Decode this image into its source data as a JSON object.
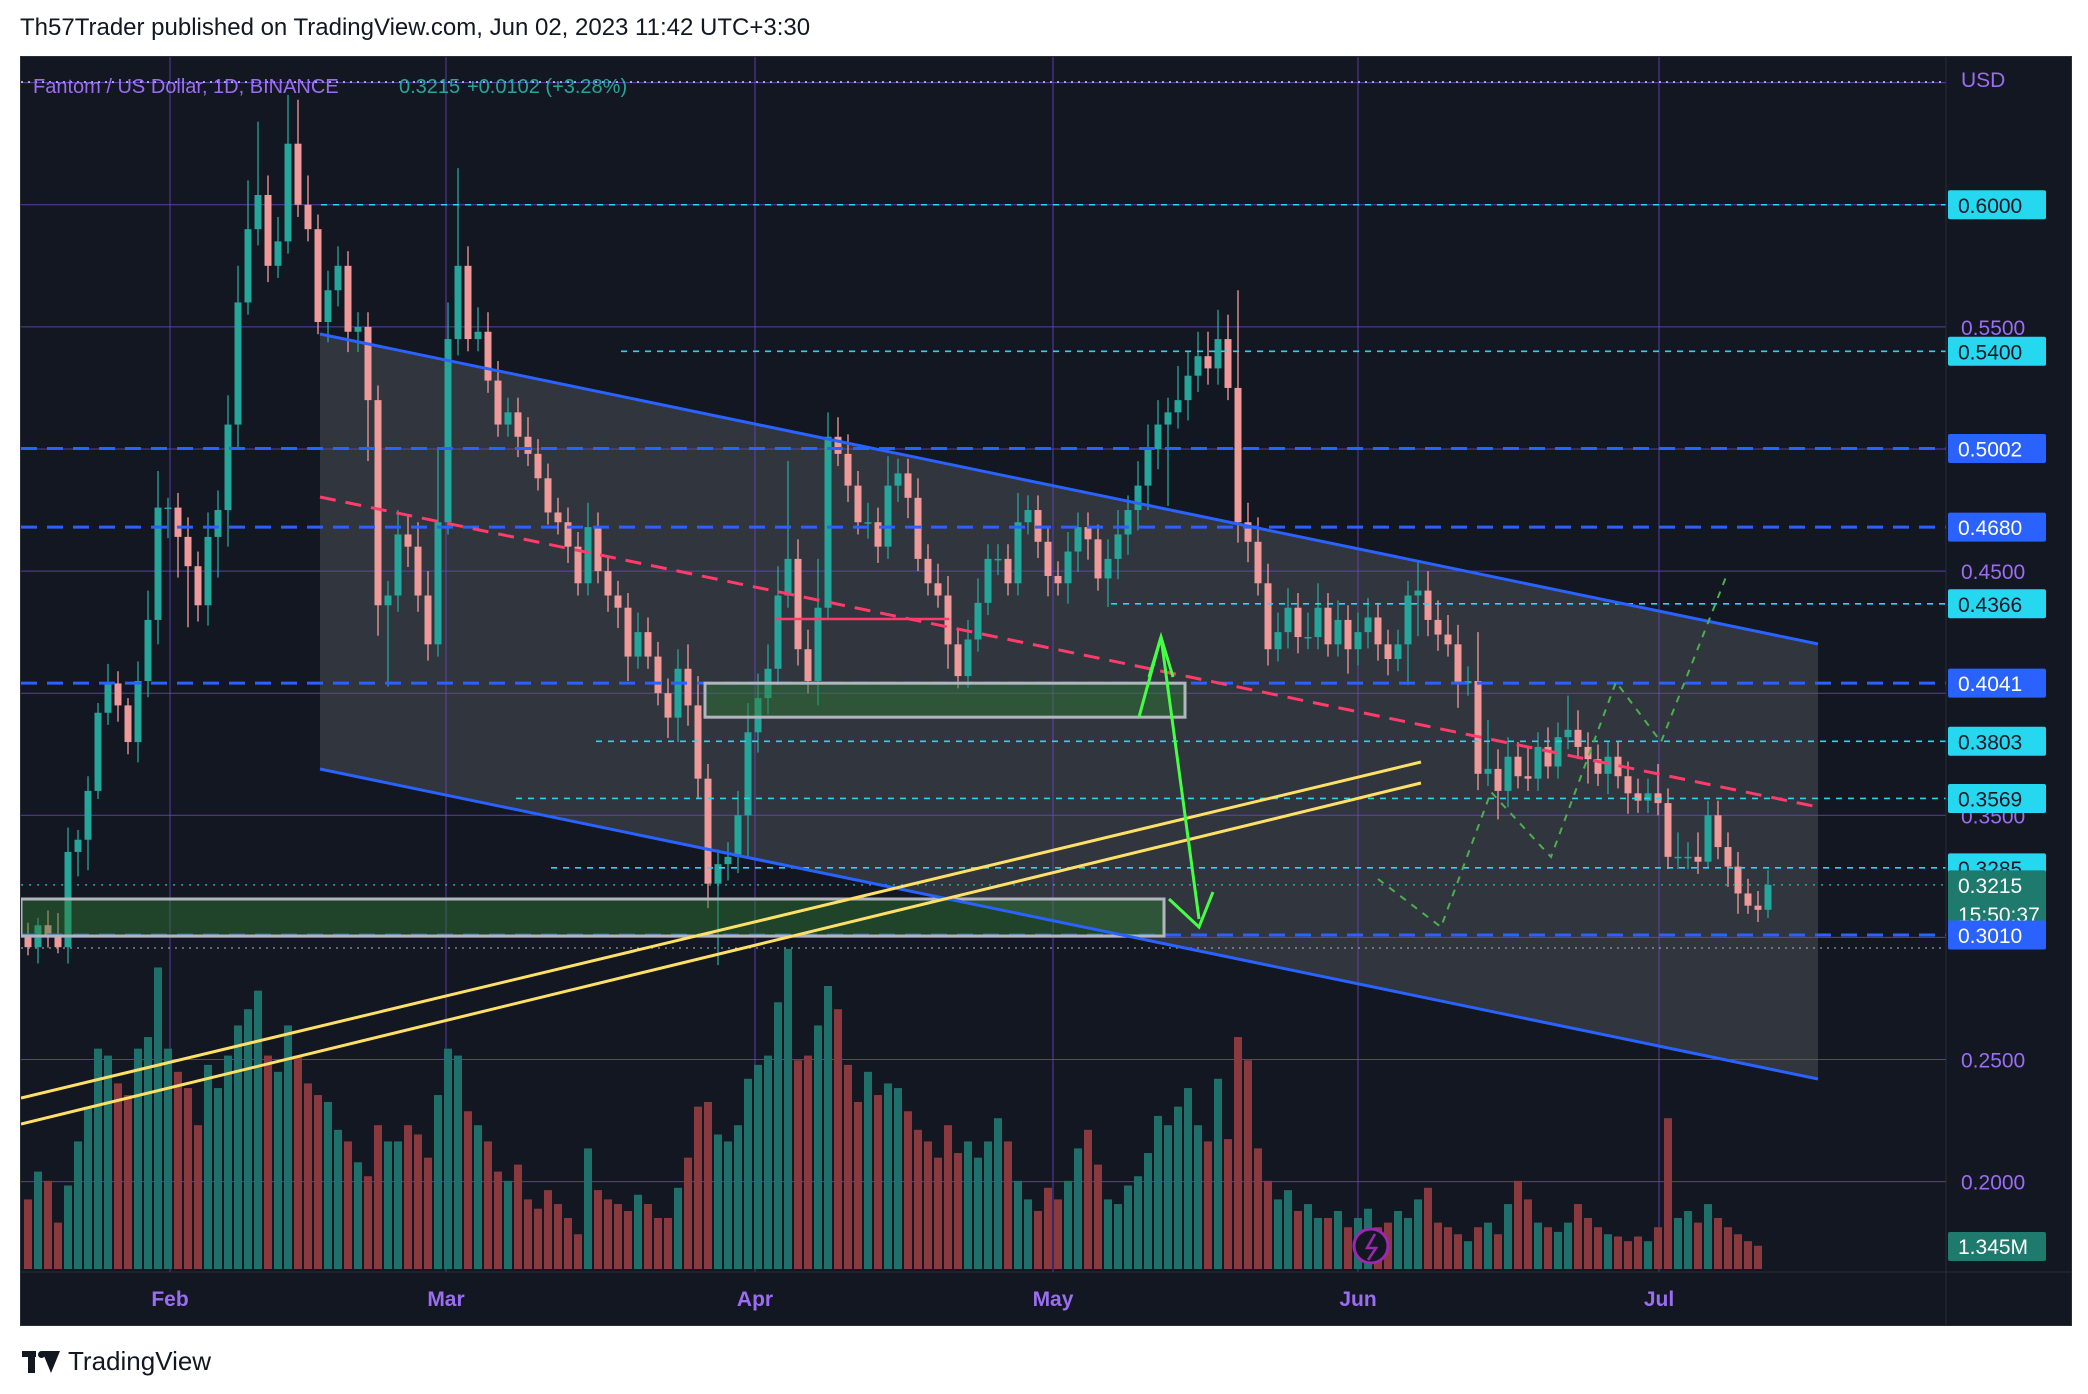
{
  "header": {
    "text": "Th57Trader published on TradingView.com, Jun 02, 2023 11:42 UTC+3:30"
  },
  "footer": {
    "brand": "TradingView"
  },
  "chart_data": {
    "type": "candlestick",
    "symbol_line": {
      "symbol": "Fantom / US Dollar, 1D, BINANCE",
      "last": "0.3215",
      "change": "+0.0102 (+3.28%)"
    },
    "currency": "USD",
    "colors": {
      "background": "#131722",
      "up": "#26a69a",
      "down": "#ef9a9a",
      "grid": "#6a48c8",
      "channel": "#2962ff",
      "dashed_levels": "#2962ff",
      "cyan_levels": "#26d7f0",
      "pink_dashed": "#ff3b6b",
      "yellow_lines": "#ffe066",
      "green_arrow": "#44ff44",
      "projection": "#4caf50"
    },
    "y_axis": {
      "range": [
        0.163,
        0.6605
      ],
      "grid_ticks": [
        "0.6000",
        "0.5500",
        "0.4500",
        "0.3500",
        "0.2500",
        "0.2000"
      ],
      "badges": [
        {
          "label": "0.6000",
          "value": 0.6,
          "style": "cyan"
        },
        {
          "label": "0.5400",
          "value": 0.54,
          "style": "cyan"
        },
        {
          "label": "0.5002",
          "value": 0.5002,
          "style": "blue"
        },
        {
          "label": "0.4680",
          "value": 0.468,
          "style": "blue"
        },
        {
          "label": "0.4366",
          "value": 0.4366,
          "style": "cyan"
        },
        {
          "label": "0.4041",
          "value": 0.4041,
          "style": "blue"
        },
        {
          "label": "0.3803",
          "value": 0.3803,
          "style": "cyan"
        },
        {
          "label": "0.3569",
          "value": 0.3569,
          "style": "cyan"
        },
        {
          "label": "0.3285",
          "value": 0.3285,
          "style": "cyan"
        },
        {
          "label": "0.3215",
          "value": 0.3215,
          "style": "current",
          "countdown": "15:50:37"
        },
        {
          "label": "0.3010",
          "value": 0.301,
          "style": "blue"
        }
      ],
      "volume_badge": "1.345M"
    },
    "x_axis": {
      "months": [
        "Feb",
        "Mar",
        "Apr",
        "May",
        "Jun",
        "Jul"
      ]
    },
    "dashed_levels_blue": [
      0.5002,
      0.468,
      0.4041,
      0.301
    ],
    "dotted_levels_cyan": [
      0.6,
      0.54,
      0.4366,
      0.3803,
      0.3569,
      0.3285
    ],
    "horizontal_segment_red": 0.433,
    "zones": [
      {
        "name": "support-zone-1",
        "top": 0.4041,
        "bottom": 0.3885
      },
      {
        "name": "support-zone-2",
        "top": 0.3125,
        "bottom": 0.296
      }
    ],
    "volume_max": 1.345
  }
}
